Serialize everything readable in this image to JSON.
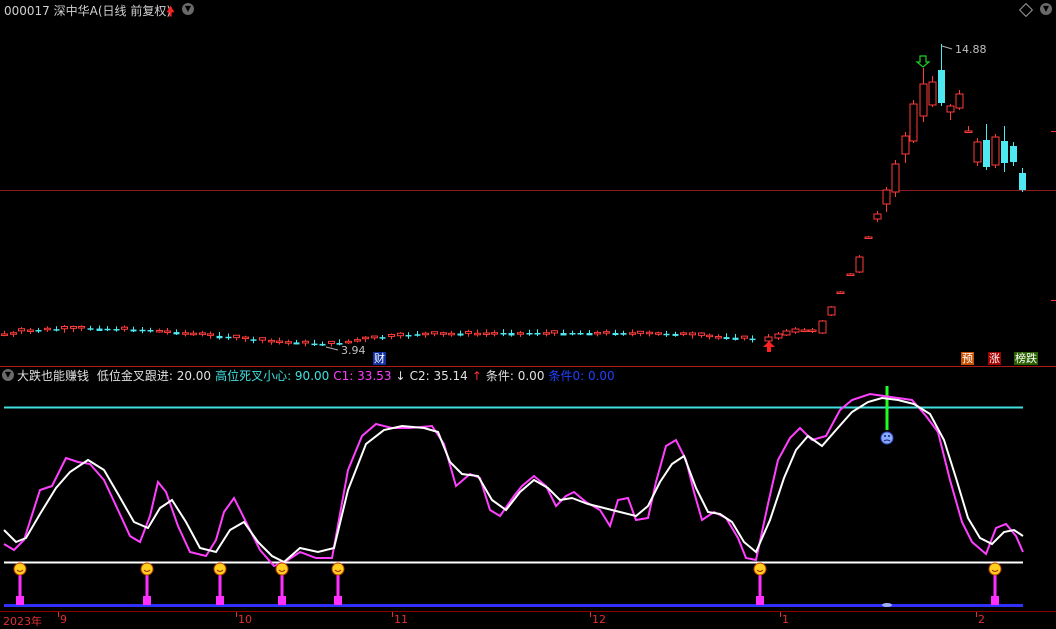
{
  "header": {
    "title": "000017 深中华A(日线 前复权)",
    "price_high_label": "14.88",
    "price_low_label": "3.94"
  },
  "badges": {
    "cai": "财",
    "yu": "预",
    "zhang": "涨",
    "bang": "榜跌"
  },
  "indicator": {
    "name": "大跌也能赚钱",
    "items": [
      {
        "label": "低位金叉跟进: 20.00",
        "color": "#e0e0e0"
      },
      {
        "label": "高位死叉小心: 90.00",
        "color": "#40e0e0"
      },
      {
        "label": "C1: 33.53",
        "color": "#ff40ff"
      },
      {
        "label": "↓",
        "color": "#e0e0e0"
      },
      {
        "label": "C2: 35.14",
        "color": "#e0e0e0"
      },
      {
        "label": "↑",
        "color": "#ff3030"
      },
      {
        "label": "条件: 0.00",
        "color": "#e0e0e0"
      },
      {
        "label": "条件0: 0.00",
        "color": "#2040ff"
      }
    ]
  },
  "dates": {
    "year": "2023年",
    "labels": [
      "9",
      "10",
      "11",
      "12",
      "1",
      "2"
    ]
  },
  "colors": {
    "up": "#ff3b3b",
    "down": "#4de8f0",
    "c1": "#ff40ff",
    "c2": "#ffffff",
    "high_line": "#40e0e0",
    "low_line": "#ffffff"
  }
}
